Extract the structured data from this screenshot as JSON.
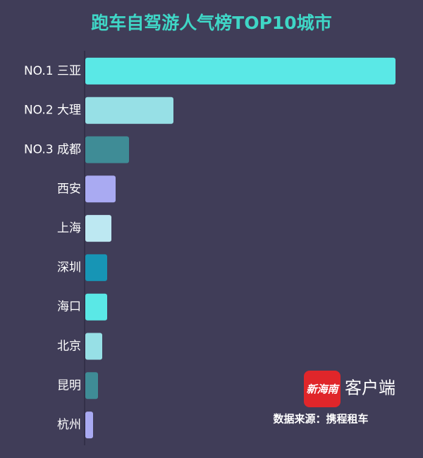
{
  "chart_data": {
    "type": "bar",
    "orientation": "horizontal",
    "title": "跑车自驾游人气榜TOP10城市",
    "categories": [
      "NO.1 三亚",
      "NO.2 大理",
      "NO.3 成都",
      "西安",
      "上海",
      "深圳",
      "海口",
      "北京",
      "昆明",
      "杭州"
    ],
    "values": [
      440,
      125,
      62,
      43,
      37,
      31,
      31,
      24,
      18,
      11
    ],
    "colors": [
      "#5ae8e6",
      "#97e0e6",
      "#3f8c96",
      "#a9aaf2",
      "#bde8f2",
      "#1795b5",
      "#5ae8e6",
      "#97e0e6",
      "#3f8c96",
      "#a9aaf2"
    ],
    "source": "数据来源：携程租车",
    "logo": {
      "badge": "新海南",
      "text": "客户端"
    }
  }
}
